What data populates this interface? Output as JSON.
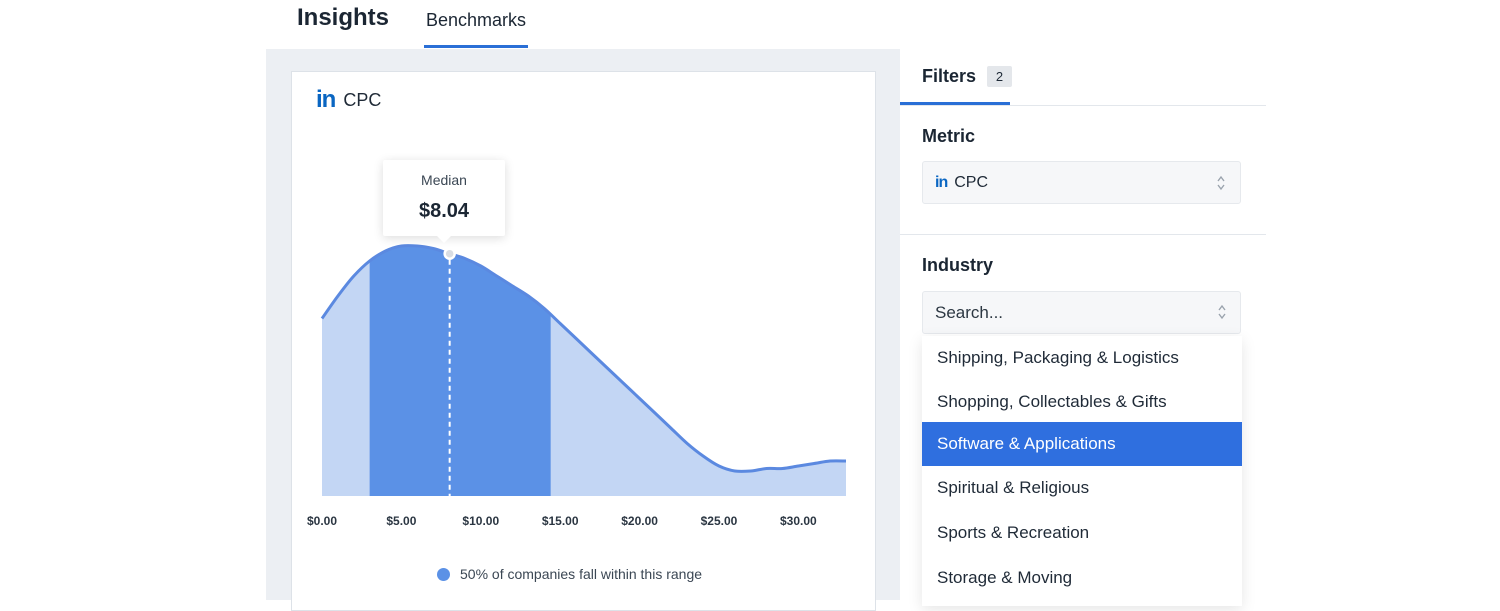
{
  "header": {
    "title": "Insights",
    "tabs": [
      {
        "label": "Benchmarks",
        "active": true
      }
    ]
  },
  "card": {
    "platform_icon": "linkedin-icon",
    "title": "CPC"
  },
  "tooltip": {
    "label": "Median",
    "value": "$8.04"
  },
  "legend": {
    "text": "50% of companies fall within this range",
    "color": "#5b91e6"
  },
  "chart_data": {
    "type": "area",
    "x_ticks": [
      "$0.00",
      "$5.00",
      "$10.00",
      "$15.00",
      "$20.00",
      "$25.00",
      "$30.00"
    ],
    "x": [
      0,
      1,
      2,
      3,
      4,
      5,
      6,
      7,
      8,
      9,
      10,
      11,
      12,
      13,
      14,
      15,
      16,
      17,
      18,
      19,
      20,
      21,
      22,
      23,
      24,
      25,
      26,
      27,
      28,
      29,
      30,
      31,
      32,
      33
    ],
    "y": [
      0.71,
      0.8,
      0.88,
      0.94,
      0.98,
      1.0,
      1.0,
      0.99,
      0.97,
      0.95,
      0.92,
      0.88,
      0.84,
      0.8,
      0.75,
      0.69,
      0.63,
      0.57,
      0.51,
      0.45,
      0.39,
      0.33,
      0.27,
      0.21,
      0.16,
      0.12,
      0.1,
      0.1,
      0.11,
      0.11,
      0.12,
      0.13,
      0.14,
      0.14
    ],
    "xlim": [
      0,
      33
    ],
    "ylim": [
      0,
      1
    ],
    "highlight_range": [
      3.0,
      14.4
    ],
    "median": 8.04,
    "colors": {
      "fill": "#c3d6f4",
      "highlight": "#5b91e6",
      "line": "#5b89e0"
    }
  },
  "filters": {
    "tab_label": "Filters",
    "count": "2",
    "metric": {
      "label": "Metric",
      "icon": "linkedin-icon",
      "value": "CPC"
    },
    "industry": {
      "label": "Industry",
      "placeholder": "Search...",
      "options": [
        {
          "label": "Shipping, Packaging & Logistics",
          "selected": false
        },
        {
          "label": "Shopping, Collectables & Gifts",
          "selected": false
        },
        {
          "label": "Software & Applications",
          "selected": true
        },
        {
          "label": "Spiritual & Religious",
          "selected": false
        },
        {
          "label": "Sports & Recreation",
          "selected": false
        },
        {
          "label": "Storage & Moving",
          "selected": false
        }
      ]
    }
  }
}
